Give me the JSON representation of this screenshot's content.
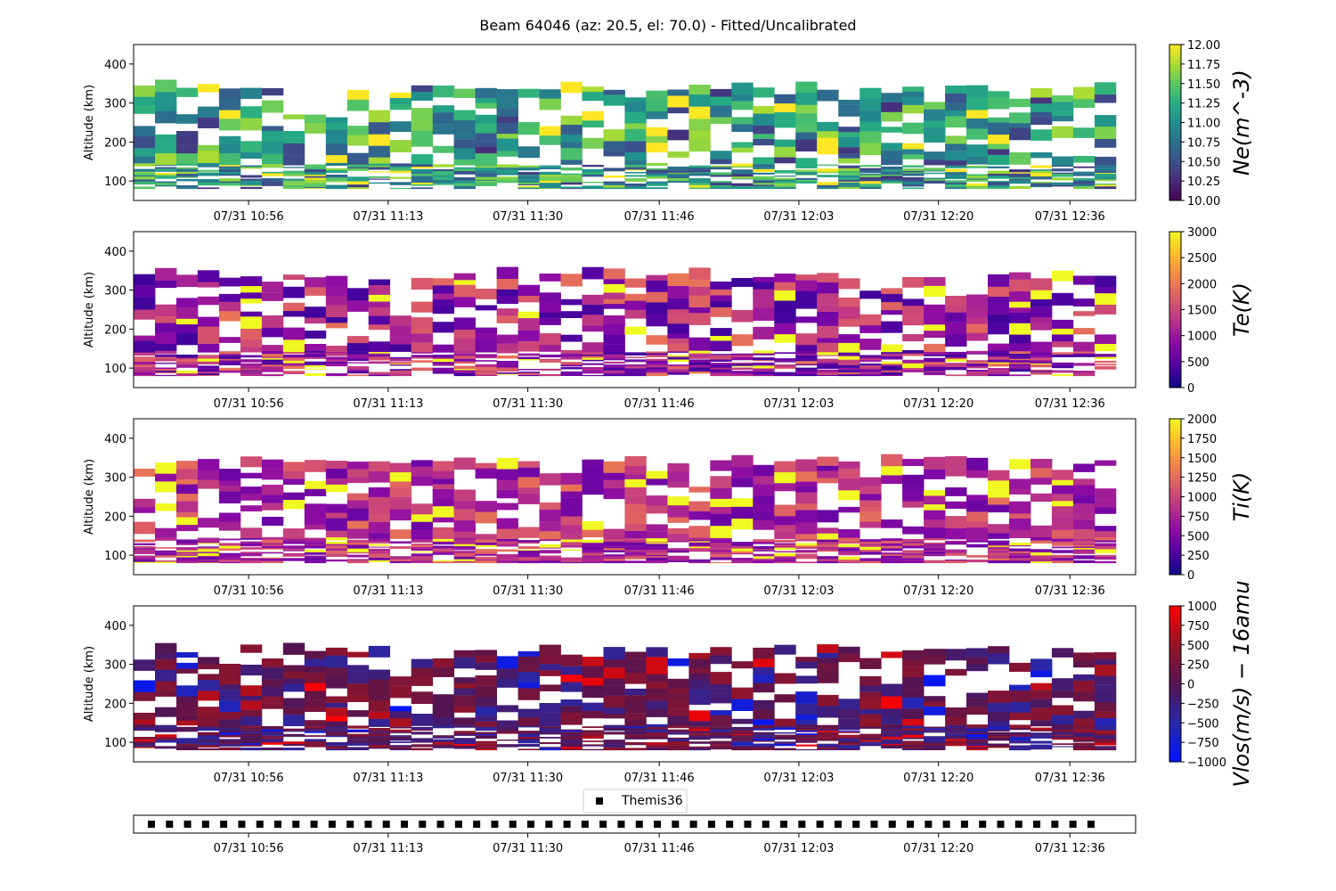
{
  "figure": {
    "title": "Beam 64046 (az: 20.5, el: 70.0) - Fitted/Uncalibrated"
  },
  "chart_data": [
    {
      "type": "heatmap",
      "panel": "ne",
      "ylabel": "Altitude (km)",
      "xlabel": "",
      "x_tick_labels": [
        "07/31 10:56",
        "07/31 11:13",
        "07/31 11:30",
        "07/31 11:46",
        "07/31 12:03",
        "07/31 12:20",
        "07/31 12:36"
      ],
      "x_tick_minutes": [
        56,
        73,
        90,
        106,
        123,
        140,
        156
      ],
      "xlim_minutes": [
        42,
        164
      ],
      "ylim": [
        50,
        450
      ],
      "y_ticks": [
        100,
        200,
        300,
        400
      ],
      "colorbar_label": "Ne(m^-3)",
      "colorbar_range": [
        10.0,
        12.0
      ],
      "colorbar_ticks": [
        "10.00",
        "10.25",
        "10.50",
        "10.75",
        "11.00",
        "11.25",
        "11.50",
        "11.75",
        "12.00"
      ],
      "colormap": "viridis",
      "data_extent_altitude_km": [
        80,
        330
      ],
      "data_extent_minutes": [
        42,
        162
      ],
      "typical_value_range": [
        10.25,
        11.75
      ]
    },
    {
      "type": "heatmap",
      "panel": "te",
      "ylabel": "Altitude (km)",
      "xlabel": "",
      "x_tick_labels": [
        "07/31 10:56",
        "07/31 11:13",
        "07/31 11:30",
        "07/31 11:46",
        "07/31 12:03",
        "07/31 12:20",
        "07/31 12:36"
      ],
      "x_tick_minutes": [
        56,
        73,
        90,
        106,
        123,
        140,
        156
      ],
      "xlim_minutes": [
        42,
        164
      ],
      "ylim": [
        50,
        450
      ],
      "y_ticks": [
        100,
        200,
        300,
        400
      ],
      "colorbar_label": "Te(K)",
      "colorbar_range": [
        0,
        3000
      ],
      "colorbar_ticks": [
        "0",
        "500",
        "1000",
        "1500",
        "2000",
        "2500",
        "3000"
      ],
      "colormap": "plasma",
      "data_extent_altitude_km": [
        80,
        330
      ],
      "data_extent_minutes": [
        42,
        162
      ],
      "typical_value_range": [
        300,
        2000
      ]
    },
    {
      "type": "heatmap",
      "panel": "ti",
      "ylabel": "Altitude (km)",
      "xlabel": "",
      "x_tick_labels": [
        "07/31 10:56",
        "07/31 11:13",
        "07/31 11:30",
        "07/31 11:46",
        "07/31 12:03",
        "07/31 12:20",
        "07/31 12:36"
      ],
      "x_tick_minutes": [
        56,
        73,
        90,
        106,
        123,
        140,
        156
      ],
      "xlim_minutes": [
        42,
        164
      ],
      "ylim": [
        50,
        450
      ],
      "y_ticks": [
        100,
        200,
        300,
        400
      ],
      "colorbar_label": "Ti(K)",
      "colorbar_range": [
        0,
        2000
      ],
      "colorbar_ticks": [
        "0",
        "250",
        "500",
        "750",
        "1000",
        "1250",
        "1500",
        "1750",
        "2000"
      ],
      "colormap": "plasma",
      "data_extent_altitude_km": [
        80,
        330
      ],
      "data_extent_minutes": [
        42,
        162
      ],
      "typical_value_range": [
        400,
        1300
      ]
    },
    {
      "type": "heatmap",
      "panel": "vlos",
      "ylabel": "Altitude (km)",
      "xlabel": "",
      "x_tick_labels": [
        "07/31 10:56",
        "07/31 11:13",
        "07/31 11:30",
        "07/31 11:46",
        "07/31 12:03",
        "07/31 12:20",
        "07/31 12:36"
      ],
      "x_tick_minutes": [
        56,
        73,
        90,
        106,
        123,
        140,
        156
      ],
      "xlim_minutes": [
        42,
        164
      ],
      "ylim": [
        50,
        450
      ],
      "y_ticks": [
        100,
        200,
        300,
        400
      ],
      "colorbar_label": "Vlos(m/s) − 16amu",
      "colorbar_range": [
        -1000,
        1000
      ],
      "colorbar_ticks": [
        "−1000",
        "−750",
        "−500",
        "−250",
        "0",
        "250",
        "500",
        "750",
        "1000"
      ],
      "colormap": "bwr_dark",
      "data_extent_altitude_km": [
        80,
        330
      ],
      "data_extent_minutes": [
        42,
        162
      ],
      "typical_value_range": [
        -1000,
        1000
      ]
    },
    {
      "type": "scatter",
      "panel": "themis",
      "series": [
        {
          "name": "Themis36",
          "marker": "square",
          "color": "#000000",
          "x_start_minutes": 42,
          "x_step_minutes": 2.2,
          "count": 53
        }
      ],
      "x_tick_labels": [
        "07/31 10:56",
        "07/31 11:13",
        "07/31 11:30",
        "07/31 11:46",
        "07/31 12:03",
        "07/31 12:20",
        "07/31 12:36"
      ],
      "x_tick_minutes": [
        56,
        73,
        90,
        106,
        123,
        140,
        156
      ],
      "xlim_minutes": [
        42,
        164
      ],
      "legend_placement": "top-center"
    }
  ]
}
